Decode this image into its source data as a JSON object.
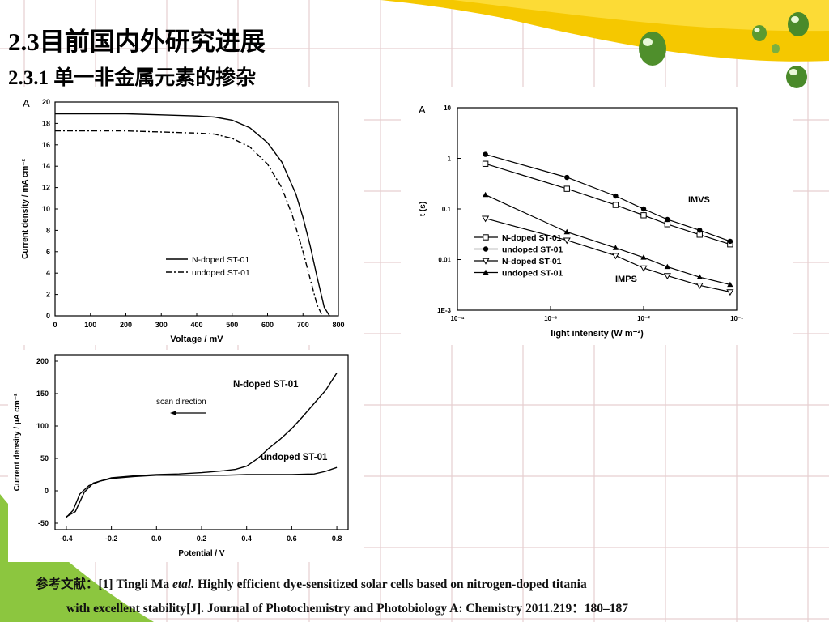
{
  "slide": {
    "title": "2.3目前国内外研究进展",
    "subtitle": "2.3.1 单一非金属元素的掺杂"
  },
  "reference": {
    "prefix": "参考文献：",
    "number": "[1]",
    "authors": "Tingli Ma",
    "etal": "etal.",
    "line1_rest": "Highly efficient dye-sensitized solar cells based on nitrogen-doped titania",
    "line2": "with excellent stability[J]. Journal of Photochemistry and Photobiology A: Chemistry  2011.219：180–187"
  },
  "colors": {
    "accent_yellow": "#f5c800",
    "accent_green": "#8cc63f",
    "grid": "#e6cfd0"
  },
  "chart_data": [
    {
      "type": "line",
      "panel": "A",
      "xlabel": "Voltage / mV",
      "ylabel": "Current density / mA cm⁻²",
      "xlim": [
        0,
        800
      ],
      "ylim": [
        0,
        20
      ],
      "xticks": [
        0,
        100,
        200,
        300,
        400,
        500,
        600,
        700,
        800
      ],
      "yticks": [
        0,
        2,
        4,
        6,
        8,
        10,
        12,
        14,
        16,
        18,
        20
      ],
      "legend": "center-right",
      "series": [
        {
          "name": "N-doped ST-01",
          "style": "solid",
          "x": [
            0,
            100,
            200,
            300,
            400,
            450,
            500,
            550,
            600,
            640,
            680,
            700,
            720,
            740,
            760,
            775
          ],
          "y": [
            18.9,
            18.9,
            18.9,
            18.8,
            18.7,
            18.6,
            18.3,
            17.6,
            16.2,
            14.4,
            11.4,
            9.2,
            6.6,
            3.6,
            0.8,
            0
          ]
        },
        {
          "name": "undoped ST-01",
          "style": "dashdot",
          "x": [
            0,
            100,
            200,
            300,
            400,
            450,
            500,
            550,
            600,
            640,
            670,
            700,
            720,
            740,
            755
          ],
          "y": [
            17.3,
            17.3,
            17.3,
            17.2,
            17.1,
            17.0,
            16.6,
            15.8,
            14.2,
            12.0,
            9.4,
            6.0,
            3.5,
            1.0,
            0
          ]
        }
      ]
    },
    {
      "type": "line",
      "panel": "A",
      "xlabel": "light intensity (W m⁻²)",
      "ylabel": "t (s)",
      "xscale": "log",
      "yscale": "log",
      "xlim": [
        0.0001,
        0.1
      ],
      "ylim": [
        0.001,
        10
      ],
      "xticks": [
        "10⁻⁴",
        "10⁻³",
        "10⁻²",
        "10⁻¹"
      ],
      "yticks": [
        "1E-3",
        "0.01",
        "0.1",
        "1",
        "10"
      ],
      "annotations": [
        "IMVS",
        "IMPS"
      ],
      "legend": "bottom-left",
      "series": [
        {
          "name": "N-doped ST-01",
          "marker": "open-square",
          "x": [
            0.0002,
            0.0015,
            0.005,
            0.01,
            0.018,
            0.04,
            0.085
          ],
          "y": [
            0.78,
            0.25,
            0.12,
            0.075,
            0.05,
            0.031,
            0.02
          ]
        },
        {
          "name": "undoped ST-01",
          "marker": "filled-circle",
          "x": [
            0.0002,
            0.0015,
            0.005,
            0.01,
            0.018,
            0.04,
            0.085
          ],
          "y": [
            1.2,
            0.42,
            0.18,
            0.1,
            0.062,
            0.038,
            0.023
          ]
        },
        {
          "name": "N-doped ST-01",
          "marker": "open-triangle-down",
          "x": [
            0.0002,
            0.0015,
            0.005,
            0.01,
            0.018,
            0.04,
            0.085
          ],
          "y": [
            0.065,
            0.024,
            0.012,
            0.0068,
            0.0048,
            0.0031,
            0.0023
          ]
        },
        {
          "name": "undoped ST-01",
          "marker": "filled-triangle-up",
          "x": [
            0.0002,
            0.0015,
            0.005,
            0.01,
            0.018,
            0.04,
            0.085
          ],
          "y": [
            0.19,
            0.035,
            0.017,
            0.011,
            0.0072,
            0.0045,
            0.0032
          ]
        }
      ]
    },
    {
      "type": "line",
      "xlabel": "Potential / V",
      "ylabel": "Current density / µA cm⁻²",
      "xlim": [
        -0.45,
        0.85
      ],
      "ylim": [
        -60,
        210
      ],
      "xticks": [
        -0.4,
        -0.2,
        0.0,
        0.2,
        0.4,
        0.6,
        0.8
      ],
      "yticks": [
        -50,
        0,
        50,
        100,
        150,
        200
      ],
      "annotations": [
        "scan direction"
      ],
      "series": [
        {
          "name": "N-doped ST-01",
          "x": [
            -0.4,
            -0.36,
            -0.32,
            -0.28,
            -0.2,
            -0.1,
            0.0,
            0.1,
            0.2,
            0.3,
            0.35,
            0.4,
            0.45,
            0.5,
            0.55,
            0.6,
            0.65,
            0.7,
            0.75,
            0.8
          ],
          "y": [
            -40,
            -32,
            -2,
            12,
            20,
            23,
            25,
            26,
            28,
            31,
            33,
            38,
            50,
            66,
            80,
            96,
            115,
            135,
            155,
            182
          ]
        },
        {
          "name": "undoped ST-01",
          "x": [
            -0.4,
            -0.37,
            -0.34,
            -0.3,
            -0.25,
            -0.2,
            -0.1,
            0.0,
            0.1,
            0.2,
            0.3,
            0.4,
            0.5,
            0.6,
            0.7,
            0.75,
            0.8
          ],
          "y": [
            -41,
            -30,
            -5,
            8,
            15,
            19,
            22,
            24,
            24,
            24,
            24,
            25,
            25,
            25,
            26,
            30,
            36
          ]
        }
      ]
    }
  ]
}
